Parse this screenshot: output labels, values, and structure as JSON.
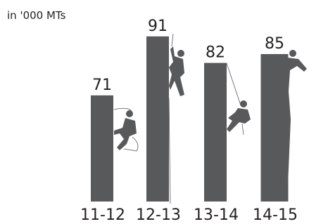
{
  "chart_data": {
    "type": "bar",
    "title": "in '000 MTs",
    "categories": [
      "11-12",
      "12-13",
      "13-14",
      "14-15"
    ],
    "values": [
      71,
      91,
      82,
      85
    ],
    "color": "#58595b",
    "ylim": [
      35,
      100
    ]
  }
}
